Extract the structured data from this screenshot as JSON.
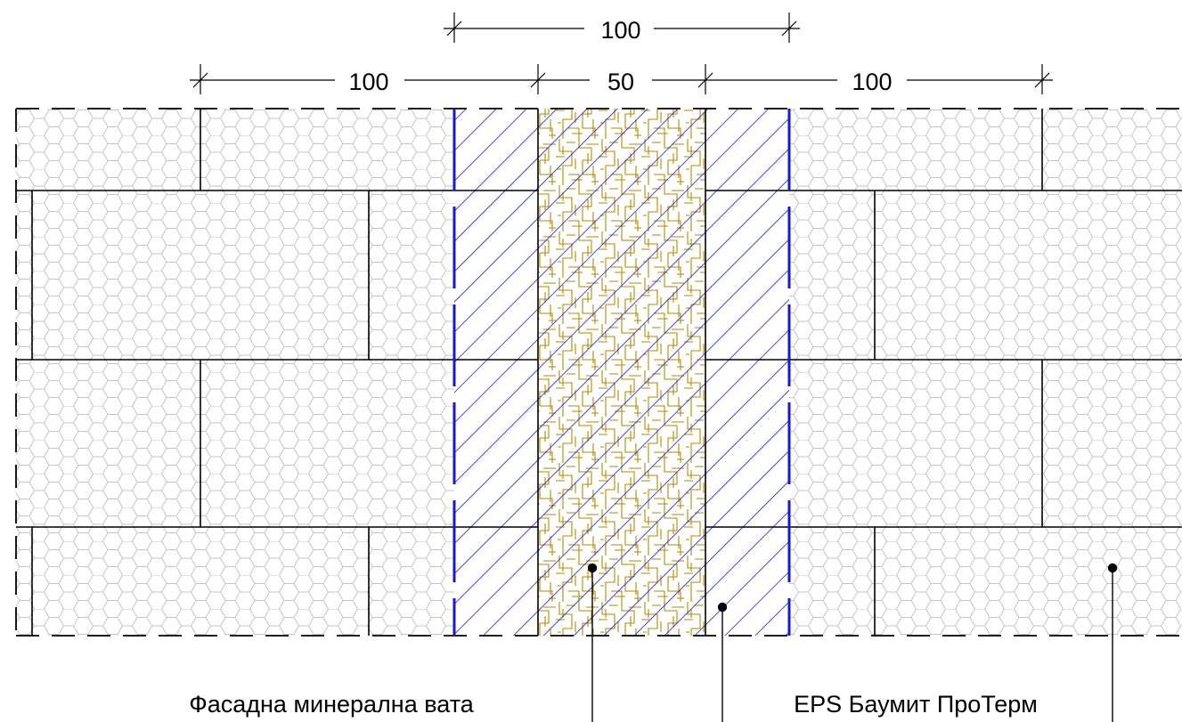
{
  "dimensions": {
    "top": "100",
    "left": "100",
    "middle": "50",
    "right": "100"
  },
  "labels": {
    "mineral_wool": "Фасадна минерална вата",
    "eps": "EPS Баумит ПроТерм"
  },
  "colors": {
    "eps_hatch": "#1a1acc",
    "wool_hatch": "#b08a00",
    "lines": "#000000",
    "hex_pattern": "#bdbdbd"
  }
}
